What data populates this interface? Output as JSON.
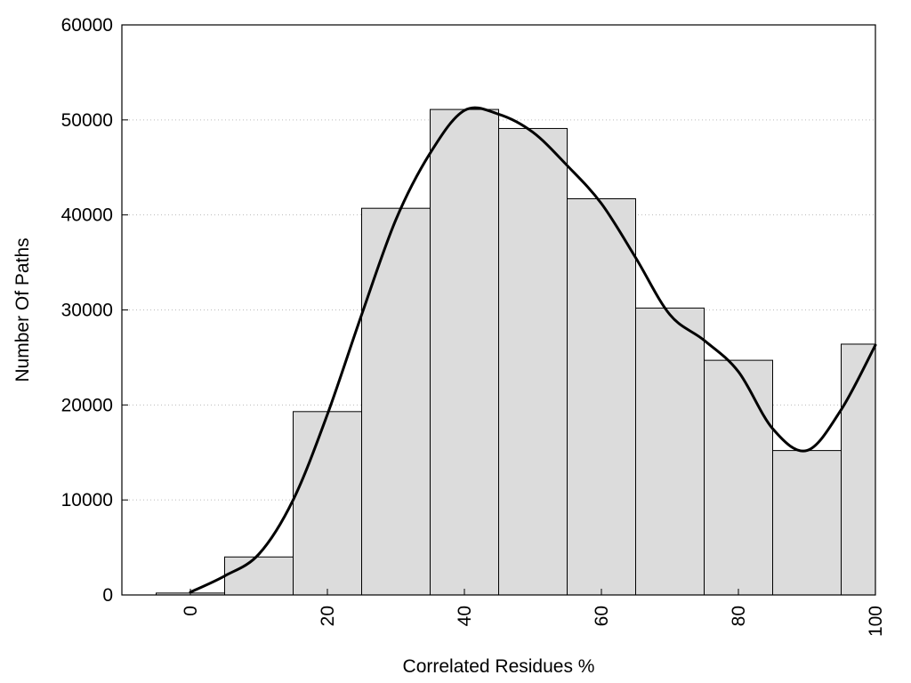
{
  "chart_data": {
    "type": "bar",
    "title": "",
    "xlabel": "Correlated Residues %",
    "ylabel": "Number Of Paths",
    "xlim": [
      -10,
      100
    ],
    "ylim": [
      0,
      60000
    ],
    "x_ticks": [
      0,
      20,
      40,
      60,
      80,
      100
    ],
    "y_ticks": [
      0,
      10000,
      20000,
      30000,
      40000,
      50000,
      60000
    ],
    "grid": "horizontal dotted",
    "bin_width": 10,
    "bins": [
      {
        "center": 0,
        "value": 200
      },
      {
        "center": 10,
        "value": 4000
      },
      {
        "center": 20,
        "value": 19300
      },
      {
        "center": 30,
        "value": 40700
      },
      {
        "center": 40,
        "value": 51100
      },
      {
        "center": 50,
        "value": 49100
      },
      {
        "center": 60,
        "value": 41700
      },
      {
        "center": 70,
        "value": 30200
      },
      {
        "center": 80,
        "value": 24700
      },
      {
        "center": 90,
        "value": 15200
      },
      {
        "center": 100,
        "value": 26400
      }
    ],
    "smooth_curve": [
      [
        0,
        300
      ],
      [
        5,
        2000
      ],
      [
        10,
        4300
      ],
      [
        15,
        10000
      ],
      [
        20,
        19000
      ],
      [
        25,
        29500
      ],
      [
        30,
        39500
      ],
      [
        35,
        46500
      ],
      [
        40,
        51000
      ],
      [
        45,
        50600
      ],
      [
        50,
        48700
      ],
      [
        55,
        45200
      ],
      [
        60,
        41200
      ],
      [
        65,
        35500
      ],
      [
        70,
        29500
      ],
      [
        75,
        26800
      ],
      [
        80,
        23500
      ],
      [
        85,
        17500
      ],
      [
        90,
        15200
      ],
      [
        95,
        19500
      ],
      [
        100,
        26300
      ]
    ],
    "colors": {
      "bar_fill": "#dcdcdc",
      "bar_stroke": "#000000",
      "curve": "#000000",
      "grid": "#bbbbbb"
    }
  }
}
